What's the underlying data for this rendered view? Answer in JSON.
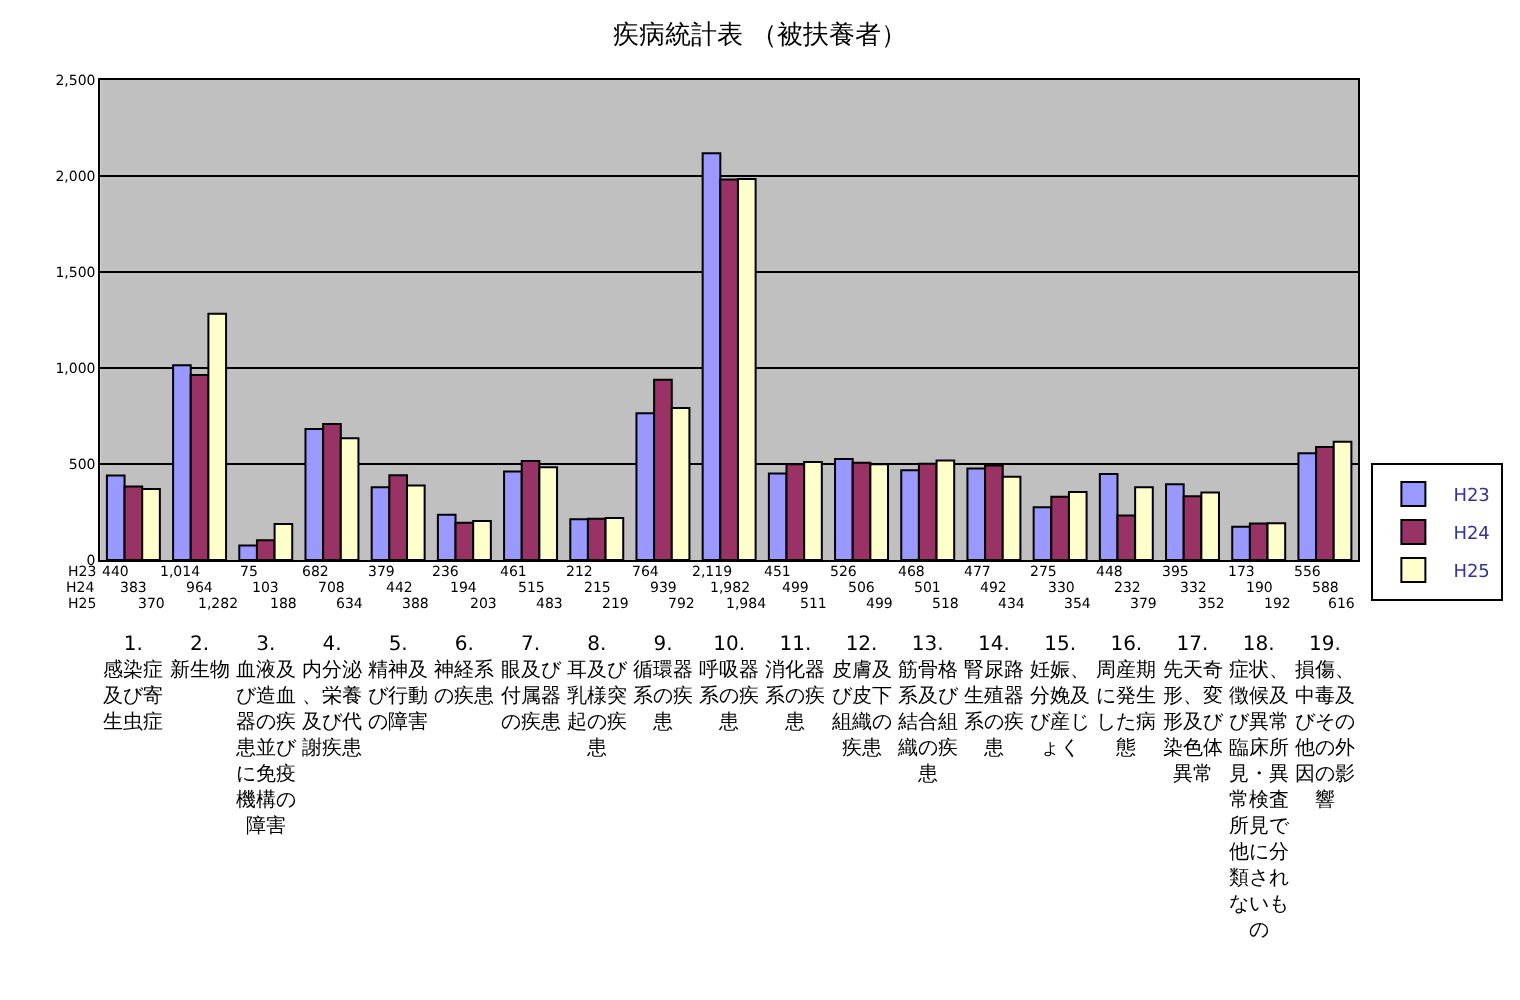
{
  "chart_data": {
    "type": "bar",
    "title": "疾病統計表 （被扶養者）",
    "categories": [
      "1.感染症及び寄生虫症",
      "2.新生物",
      "3.血液及び造血器の疾患並びに免疫機構の障害",
      "4.内分泌、栄養及び代謝疾患",
      "5.精神及び行動の障害",
      "6.神経系の疾患",
      "7.眼及び付属器の疾患",
      "8.耳及び乳様突起の疾患",
      "9.循環器系の疾患",
      "10.呼吸器系の疾患",
      "11.消化器系の疾患",
      "12.皮膚及び皮下組織の疾患",
      "13.筋骨格系及び結合組織の疾患",
      "14.腎尿路生殖器系の疾患",
      "15.妊娠、分娩及び産じょく",
      "16.周産期に発生した病態",
      "17.先天奇形、変形及び染色体異常",
      "18.症状、徴候及び異常臨床所見・異常検査所見で他に分類されないもの",
      "19.損傷、中毒及びその他の外因の影響"
    ],
    "series": [
      {
        "name": "H23",
        "color": "#9999ff",
        "values": [
          440,
          1014,
          75,
          682,
          379,
          236,
          461,
          212,
          764,
          2119,
          451,
          526,
          468,
          477,
          275,
          448,
          395,
          173,
          556
        ],
        "value_labels": [
          "440",
          "1,014",
          "75",
          "682",
          "379",
          "236",
          "461",
          "212",
          "764",
          "2,119",
          "451",
          "526",
          "468",
          "477",
          "275",
          "448",
          "395",
          "173",
          "556"
        ]
      },
      {
        "name": "H24",
        "color": "#993366",
        "values": [
          383,
          964,
          103,
          708,
          442,
          194,
          515,
          215,
          939,
          1982,
          499,
          506,
          501,
          492,
          330,
          232,
          332,
          190,
          588
        ],
        "value_labels": [
          "383",
          "964",
          "103",
          "708",
          "442",
          "194",
          "515",
          "215",
          "939",
          "1,982",
          "499",
          "506",
          "501",
          "492",
          "330",
          "232",
          "332",
          "190",
          "588"
        ]
      },
      {
        "name": "H25",
        "color": "#ffffcc",
        "values": [
          370,
          1282,
          188,
          634,
          388,
          203,
          483,
          219,
          792,
          1984,
          511,
          499,
          518,
          434,
          354,
          379,
          352,
          192,
          616
        ],
        "value_labels": [
          "370",
          "1,282",
          "188",
          "634",
          "388",
          "203",
          "483",
          "219",
          "792",
          "1,984",
          "511",
          "499",
          "518",
          "434",
          "354",
          "379",
          "352",
          "192",
          "616"
        ]
      }
    ],
    "ylim": [
      0,
      2500
    ],
    "yticks": [
      0,
      500,
      {
        "value": 1000,
        "label": "1,000"
      },
      {
        "value": 1500,
        "label": "1,500"
      },
      {
        "value": 2000,
        "label": "2,000"
      },
      {
        "value": 2500,
        "label": "2,500"
      }
    ],
    "grid": "y",
    "legend": "right"
  }
}
